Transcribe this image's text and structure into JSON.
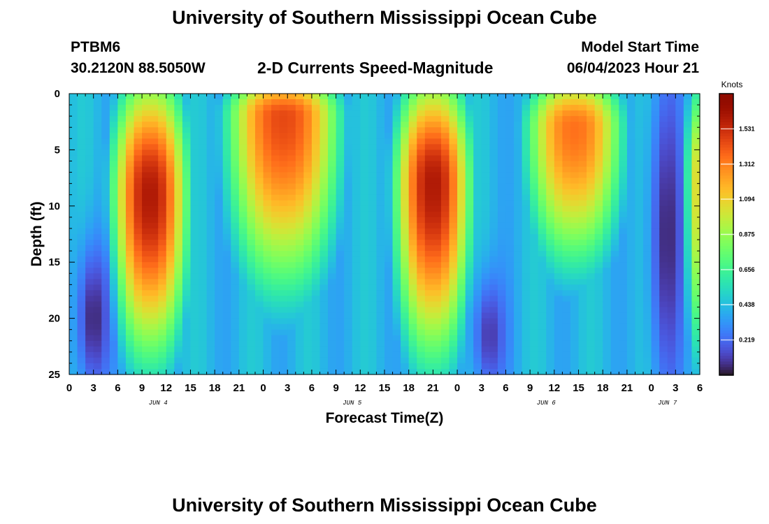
{
  "title": "University of Southern Mississippi Ocean Cube",
  "bottom_title": "University of Southern Mississippi Ocean Cube",
  "station": {
    "id": "PTBM6",
    "coords": "30.2120N  88.5050W"
  },
  "model_start": {
    "label": "Model Start Time",
    "value": "06/04/2023 Hour 21"
  },
  "chart_data": {
    "type": "heatmap",
    "title": "2-D Currents Speed-Magnitude",
    "xlabel": "Forecast Time(Z)",
    "ylabel": "Depth (ft)",
    "x_range_hours_from_jun4_00Z": [
      0,
      78
    ],
    "ylim": [
      0,
      25
    ],
    "y_inverted": true,
    "x_ticks": [
      "0",
      "3",
      "6",
      "9",
      "12",
      "15",
      "18",
      "21",
      "0",
      "3",
      "6",
      "9",
      "12",
      "15",
      "18",
      "21",
      "0",
      "3",
      "6",
      "9",
      "12",
      "15",
      "18",
      "21",
      "0",
      "3",
      "6"
    ],
    "y_ticks": [
      "0",
      "5",
      "10",
      "15",
      "20",
      "25"
    ],
    "date_labels": [
      {
        "text": "JUN 4",
        "hour": 11
      },
      {
        "text": "JUN 5",
        "hour": 35
      },
      {
        "text": "JUN 6",
        "hour": 59
      },
      {
        "text": "JUN 7",
        "hour": 74
      }
    ],
    "colorbar": {
      "title": "Knots",
      "ticks": [
        "1.531",
        "1.312",
        "1.094",
        "0.875",
        "0.656",
        "0.438",
        "0.219"
      ],
      "tick_values": [
        1.531,
        1.312,
        1.094,
        0.875,
        0.656,
        0.438,
        0.219
      ],
      "range": [
        0,
        1.75
      ],
      "colormap": "turbo"
    },
    "features": [
      {
        "kind": "max",
        "hour_range": [
          6,
          14
        ],
        "peak_speed": 1.6,
        "peak_depth": 9,
        "depth_extent": 24
      },
      {
        "kind": "max",
        "hour_range": [
          20,
          33
        ],
        "peak_speed": 1.45,
        "peak_depth": 2,
        "depth_extent": 18
      },
      {
        "kind": "max",
        "hour_range": [
          41,
          49
        ],
        "peak_speed": 1.6,
        "peak_depth": 8,
        "depth_extent": 24
      },
      {
        "kind": "max",
        "hour_range": [
          57,
          68
        ],
        "peak_speed": 1.35,
        "peak_depth": 3,
        "depth_extent": 16
      },
      {
        "kind": "max",
        "hour_range": [
          77,
          78
        ],
        "peak_speed": 1.1,
        "peak_depth": 8,
        "depth_extent": 25
      },
      {
        "kind": "min",
        "hour_range": [
          1,
          5
        ],
        "min_speed": 0.05,
        "depth_range": [
          15,
          25
        ]
      },
      {
        "kind": "min",
        "hour_range": [
          50,
          54
        ],
        "min_speed": 0.1,
        "depth_range": [
          18,
          25
        ]
      },
      {
        "kind": "min",
        "hour_range": [
          72,
          76
        ],
        "min_speed": 0.05,
        "depth_range": [
          0,
          25
        ]
      }
    ]
  }
}
